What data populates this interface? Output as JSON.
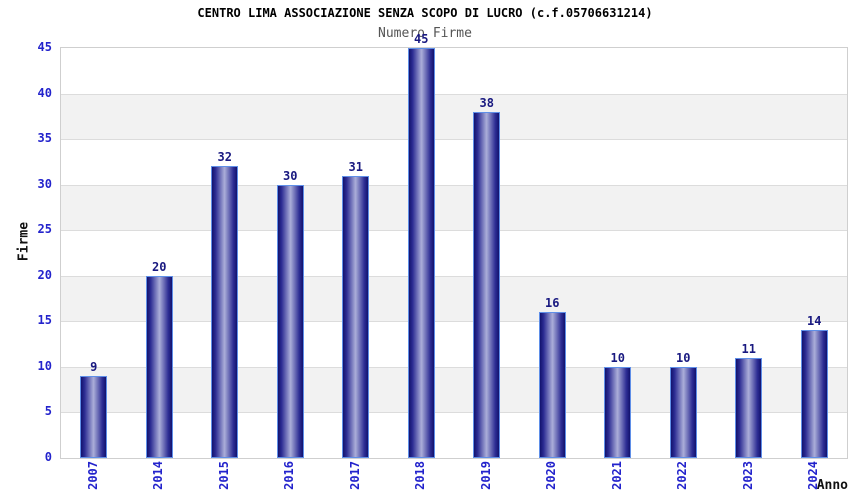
{
  "chart_data": {
    "type": "bar",
    "title": "CENTRO LIMA ASSOCIAZIONE SENZA SCOPO DI LUCRO (c.f.05706631214)",
    "subtitle": "Numero Firme",
    "xlabel": "Anno",
    "ylabel": "Firme",
    "categories": [
      "2007",
      "2014",
      "2015",
      "2016",
      "2017",
      "2018",
      "2019",
      "2020",
      "2021",
      "2022",
      "2023",
      "2024"
    ],
    "values": [
      9,
      20,
      32,
      30,
      31,
      45,
      38,
      16,
      10,
      10,
      11,
      14
    ],
    "ylim": [
      0,
      45
    ],
    "yticks": [
      0,
      5,
      10,
      15,
      20,
      25,
      30,
      35,
      40,
      45
    ],
    "grid": "horizontal-bands-alternating",
    "legend": "none",
    "bar_value_labels": true
  },
  "colors": {
    "tick_label": "#2323cc",
    "value_label": "#191980",
    "bar_border": "#5f8fe8",
    "bar_dark": "#12126e",
    "bar_mid": "#2e2e94",
    "bar_light": "#abaed9",
    "band_gray": "#f2f2f2",
    "gridline": "#dcdcdc",
    "plot_border": "#cfcfcf",
    "title": "#000000",
    "subtitle": "#555555",
    "axis_title": "#111111"
  }
}
